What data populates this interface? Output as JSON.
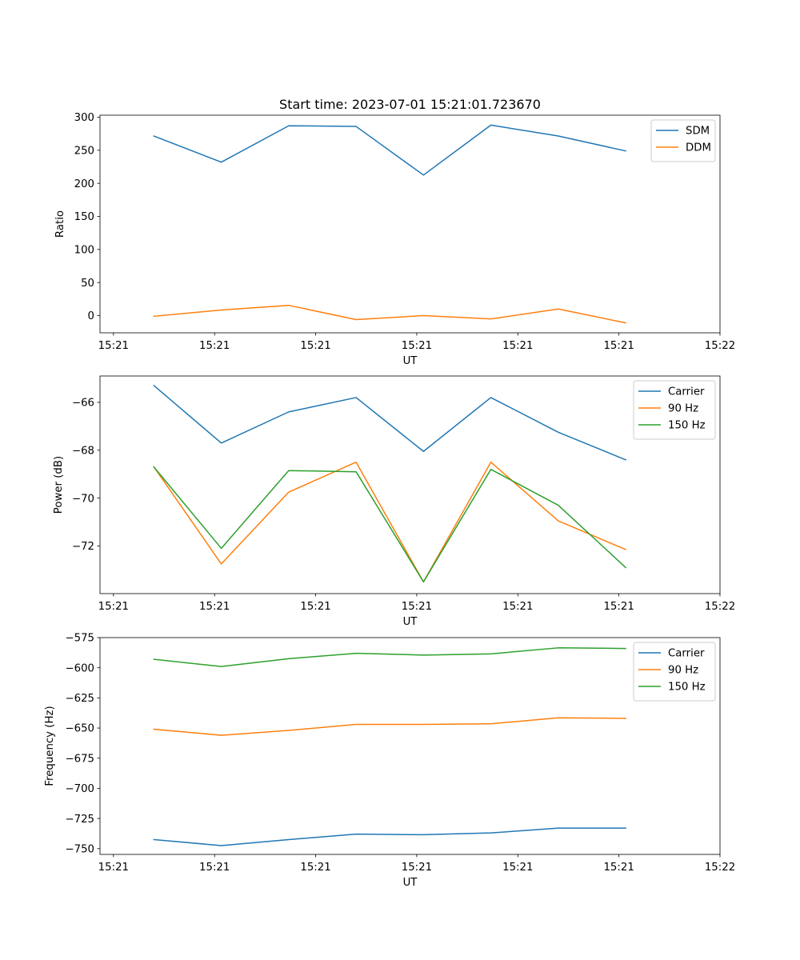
{
  "chart_data": [
    {
      "type": "line",
      "title": "Start time: 2023-07-01 15:21:01.723670",
      "xlabel": "UT",
      "ylabel": "Ratio",
      "x": [
        1,
        2,
        3,
        4,
        5,
        6,
        7,
        8
      ],
      "xlim": [
        0.2,
        9.4
      ],
      "xticks": [
        0.4,
        1.9,
        3.4,
        4.9,
        6.4,
        7.9,
        9.4
      ],
      "xtick_labels": [
        "15:21",
        "15:21",
        "15:21",
        "15:21",
        "15:21",
        "15:21",
        "15:22"
      ],
      "ylim": [
        -26,
        303
      ],
      "yticks": [
        0,
        50,
        100,
        150,
        200,
        250,
        300
      ],
      "legend": "top-right",
      "series": [
        {
          "name": "SDM",
          "color": "#1f77b4",
          "values": [
            271.5,
            232,
            287,
            286,
            212.5,
            288,
            271.5,
            249
          ]
        },
        {
          "name": "DDM",
          "color": "#ff7f0e",
          "values": [
            -1,
            8.5,
            15.5,
            -6,
            0,
            -5,
            10,
            -11
          ]
        }
      ]
    },
    {
      "type": "line",
      "title": "",
      "xlabel": "UT",
      "ylabel": "Power (dB)",
      "x": [
        1,
        2,
        3,
        4,
        5,
        6,
        7,
        8
      ],
      "xlim": [
        0.2,
        9.4
      ],
      "xticks": [
        0.4,
        1.9,
        3.4,
        4.9,
        6.4,
        7.9,
        9.4
      ],
      "xtick_labels": [
        "15:21",
        "15:21",
        "15:21",
        "15:21",
        "15:21",
        "15:21",
        "15:22"
      ],
      "ylim": [
        -73.99,
        -64.9
      ],
      "yticks": [
        -66,
        -68,
        -70,
        -72
      ],
      "legend": "top-right",
      "series": [
        {
          "name": "Carrier",
          "color": "#1f77b4",
          "values": [
            -65.3,
            -67.7,
            -66.4,
            -65.8,
            -68.05,
            -65.8,
            -67.25,
            -68.4
          ]
        },
        {
          "name": "90 Hz",
          "color": "#ff7f0e",
          "values": [
            -68.7,
            -72.75,
            -69.75,
            -68.5,
            -73.5,
            -68.5,
            -70.95,
            -72.15
          ]
        },
        {
          "name": "150 Hz",
          "color": "#2ca02c",
          "values": [
            -68.7,
            -72.1,
            -68.85,
            -68.9,
            -73.5,
            -68.8,
            -70.3,
            -72.9
          ]
        }
      ]
    },
    {
      "type": "line",
      "title": "",
      "xlabel": "UT",
      "ylabel": "Frequency (Hz)",
      "x": [
        1,
        2,
        3,
        4,
        5,
        6,
        7,
        8
      ],
      "xlim": [
        0.2,
        9.4
      ],
      "xticks": [
        0.4,
        1.9,
        3.4,
        4.9,
        6.4,
        7.9,
        9.4
      ],
      "xtick_labels": [
        "15:21",
        "15:21",
        "15:21",
        "15:21",
        "15:21",
        "15:21",
        "15:22"
      ],
      "ylim": [
        -754.8,
        -575
      ],
      "yticks": [
        -575,
        -600,
        -625,
        -650,
        -675,
        -700,
        -725,
        -750
      ],
      "legend": "top-right",
      "series": [
        {
          "name": "Carrier",
          "color": "#1f77b4",
          "values": [
            -742.5,
            -747.5,
            -742.5,
            -738,
            -738.5,
            -737,
            -733,
            -733
          ]
        },
        {
          "name": "90 Hz",
          "color": "#ff7f0e",
          "values": [
            -651,
            -656,
            -652,
            -647,
            -647,
            -646.5,
            -641.5,
            -642
          ]
        },
        {
          "name": "150 Hz",
          "color": "#2ca02c",
          "values": [
            -593,
            -599,
            -592.5,
            -588,
            -589.5,
            -588.5,
            -583.5,
            -584
          ]
        }
      ]
    }
  ]
}
